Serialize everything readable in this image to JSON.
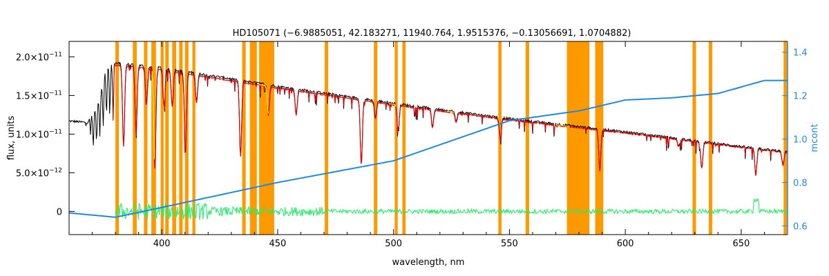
{
  "chart_data": {
    "type": "line",
    "title": "HD105071    (−6.9885051, 42.183271, 11940.764, 1.9515376, −0.13056691, 1.0704882)",
    "xlabel": "wavelength, nm",
    "ylabel": "flux, units",
    "y2label": "mcont",
    "xlim": [
      360,
      670
    ],
    "ylim": [
      -3e-12,
      2.2e-11
    ],
    "y2lim": [
      0.56,
      1.45
    ],
    "x_ticks": [
      400,
      450,
      500,
      550,
      600,
      650
    ],
    "y_ticks": [
      {
        "value": 2e-11,
        "mantissa": "2.0",
        "exp": "−11"
      },
      {
        "value": 1.5e-11,
        "mantissa": "1.5",
        "exp": "−11"
      },
      {
        "value": 1e-11,
        "mantissa": "1.0",
        "exp": "−11"
      },
      {
        "value": 5e-12,
        "mantissa": "5.0",
        "exp": "−12"
      },
      {
        "value": 0,
        "mantissa": "0",
        "exp": ""
      }
    ],
    "y2_ticks": [
      "0.6",
      "0.8",
      "1.0",
      "1.2",
      "1.4"
    ],
    "grid": false,
    "colors": {
      "observed": "#000000",
      "model": "#e00000",
      "highlight": "#ffff00",
      "residual": "#22ee66",
      "continuum": "#1e88e5",
      "masked": "#ff9900"
    },
    "masked_regions": [
      [
        380.0,
        381.5
      ],
      [
        387.5,
        389.2
      ],
      [
        392.3,
        393.8
      ],
      [
        395.5,
        397.5
      ],
      [
        399.5,
        400.8
      ],
      [
        401.5,
        403.0
      ],
      [
        404.5,
        406.2
      ],
      [
        407.5,
        409.0
      ],
      [
        410.0,
        411.5
      ],
      [
        413.2,
        414.5
      ],
      [
        434.7,
        436.2
      ],
      [
        438.0,
        441.0
      ],
      [
        442.0,
        448.5
      ],
      [
        470.3,
        471.8
      ],
      [
        491.5,
        493.0
      ],
      [
        500.5,
        501.8
      ],
      [
        503.8,
        505.2
      ],
      [
        545.2,
        546.6
      ],
      [
        557.0,
        558.5
      ],
      [
        574.8,
        584.5
      ],
      [
        587.0,
        590.5
      ],
      [
        629.0,
        630.5
      ],
      [
        636.0,
        637.5
      ],
      [
        668.3,
        669.8
      ]
    ],
    "continuum_points": [
      [
        360,
        0.66
      ],
      [
        380,
        0.64
      ],
      [
        400,
        0.685
      ],
      [
        450,
        0.8
      ],
      [
        500,
        0.9
      ],
      [
        550,
        1.085
      ],
      [
        580,
        1.13
      ],
      [
        600,
        1.18
      ],
      [
        620,
        1.19
      ],
      [
        640,
        1.21
      ],
      [
        660,
        1.27
      ],
      [
        670,
        1.27
      ]
    ],
    "flux_envelope": [
      [
        360,
        1.17e-11
      ],
      [
        368,
        1.15e-11
      ],
      [
        372,
        1.35e-11
      ],
      [
        376,
        1.85e-11
      ],
      [
        380,
        1.92e-11
      ],
      [
        400,
        1.86e-11
      ],
      [
        450,
        1.62e-11
      ],
      [
        500,
        1.4e-11
      ],
      [
        550,
        1.2e-11
      ],
      [
        600,
        1.03e-11
      ],
      [
        650,
        8.4e-12
      ],
      [
        670,
        7.7e-12
      ]
    ],
    "absorption_lines": [
      {
        "center": 383.5,
        "depth": 0.55
      },
      {
        "center": 388.9,
        "depth": 0.45
      },
      {
        "center": 393.4,
        "depth": 0.25
      },
      {
        "center": 397.0,
        "depth": 0.7
      },
      {
        "center": 401.0,
        "depth": 0.25
      },
      {
        "center": 404.5,
        "depth": 0.25
      },
      {
        "center": 410.2,
        "depth": 0.58
      },
      {
        "center": 415.0,
        "depth": 0.2
      },
      {
        "center": 434.0,
        "depth": 0.58
      },
      {
        "center": 446.0,
        "depth": 0.22
      },
      {
        "center": 458.0,
        "depth": 0.2
      },
      {
        "center": 486.1,
        "depth": 0.58
      },
      {
        "center": 492.2,
        "depth": 0.15
      },
      {
        "center": 502.0,
        "depth": 0.22
      },
      {
        "center": 516.8,
        "depth": 0.18
      },
      {
        "center": 527.0,
        "depth": 0.1
      },
      {
        "center": 546.0,
        "depth": 0.2
      },
      {
        "center": 589.0,
        "depth": 0.5
      },
      {
        "center": 623.0,
        "depth": 0.1
      },
      {
        "center": 633.0,
        "depth": 0.38
      },
      {
        "center": 656.3,
        "depth": 0.42
      },
      {
        "center": 668.0,
        "depth": 0.22
      }
    ],
    "residual_level": 0
  }
}
